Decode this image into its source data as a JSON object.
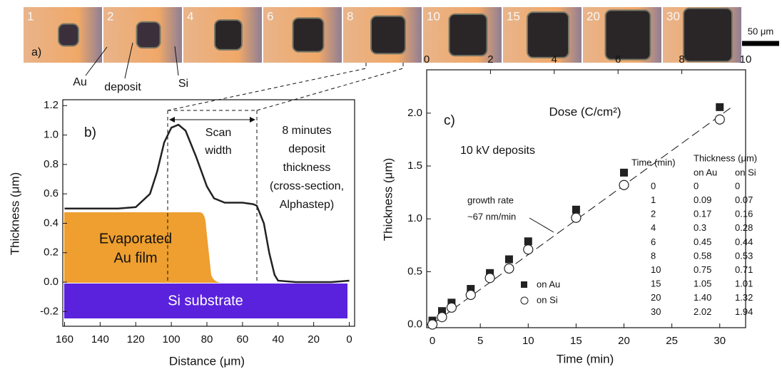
{
  "image_strip": {
    "labels": [
      "1",
      "2",
      "4",
      "6",
      "8",
      "10",
      "15",
      "20",
      "30"
    ],
    "panel_label": "a)",
    "callouts": [
      "Au",
      "deposit",
      "Si"
    ],
    "scale_bar": "50 μm"
  },
  "chart_data": [
    {
      "type": "line",
      "panel_label": "b)",
      "x_label": "Distance (μm)",
      "y_label": "Thickness (μm)",
      "x": [
        160,
        130,
        120,
        112,
        108,
        104,
        100,
        96,
        92,
        86,
        80,
        76,
        70,
        60,
        54,
        52,
        48,
        45,
        42,
        40,
        30,
        20,
        10,
        0
      ],
      "values": [
        0.5,
        0.5,
        0.51,
        0.6,
        0.75,
        0.95,
        1.05,
        1.07,
        1.03,
        0.85,
        0.65,
        0.57,
        0.54,
        0.54,
        0.53,
        0.52,
        0.4,
        0.2,
        0.05,
        0.01,
        0.0,
        0.0,
        0.0,
        0.01
      ],
      "color": "#222222",
      "xlim": [
        161,
        -3
      ],
      "xticks": [
        160,
        140,
        120,
        100,
        80,
        60,
        40,
        20,
        0
      ],
      "ylim": [
        -0.3,
        1.24
      ],
      "yticks": [
        -0.2,
        {
          "value": 0,
          "label": "0.0"
        },
        0.2,
        0.4,
        0.6,
        0.8,
        {
          "value": 1,
          "label": "1.0"
        },
        1.2
      ],
      "annotations": {
        "scan_width": [
          "Scan",
          "width"
        ],
        "description": [
          "8 minutes",
          "deposit",
          "thickness",
          "(cross-section,",
          "Alphastep)"
        ],
        "au_film": [
          "Evaporated",
          "Au film"
        ],
        "si_substrate": "Si substrate"
      }
    },
    {
      "type": "scatter",
      "panel_label": "c)",
      "x_label": "Time (min)",
      "y_label": "Thickness (μm)",
      "x2_label": "Dose (C/cm²)",
      "x": [
        0,
        1,
        2,
        4,
        6,
        8,
        10,
        15,
        20,
        30
      ],
      "series": [
        {
          "name": "on Au",
          "marker": "square",
          "color": "#222222",
          "values": [
            0,
            0.09,
            0.17,
            0.3,
            0.45,
            0.58,
            0.75,
            1.05,
            1.4,
            2.02
          ],
          "value_labels": [
            "0",
            "0.09",
            "0.17",
            "0.3",
            "0.45",
            "0.58",
            "0.75",
            "1.05",
            "1.40",
            "2.02"
          ]
        },
        {
          "name": "on Si",
          "marker": "circle",
          "color": "#222222",
          "values": [
            0,
            0.07,
            0.16,
            0.28,
            0.44,
            0.53,
            0.71,
            1.01,
            1.32,
            1.94
          ]
        }
      ],
      "xlim": [
        -0.6,
        32.7
      ],
      "xticks": [
        0,
        5,
        10,
        15,
        20,
        25,
        30
      ],
      "x2lim": [
        0,
        10
      ],
      "x2ticks": [
        0,
        2,
        4,
        6,
        8,
        10
      ],
      "ylim": [
        -0.03,
        2.41
      ],
      "yticks": [
        {
          "value": 0,
          "label": "0.0"
        },
        0.5,
        {
          "value": 1,
          "label": "1.0"
        },
        1.5,
        {
          "value": 2,
          "label": "2.0"
        }
      ],
      "annotations": {
        "deposits": "10 kV deposits",
        "growth": [
          "growth rate",
          "~67 nm/min"
        ]
      },
      "table_headers": {
        "time": "Time (min)",
        "thickness": "Thickness (μm)"
      }
    }
  ]
}
